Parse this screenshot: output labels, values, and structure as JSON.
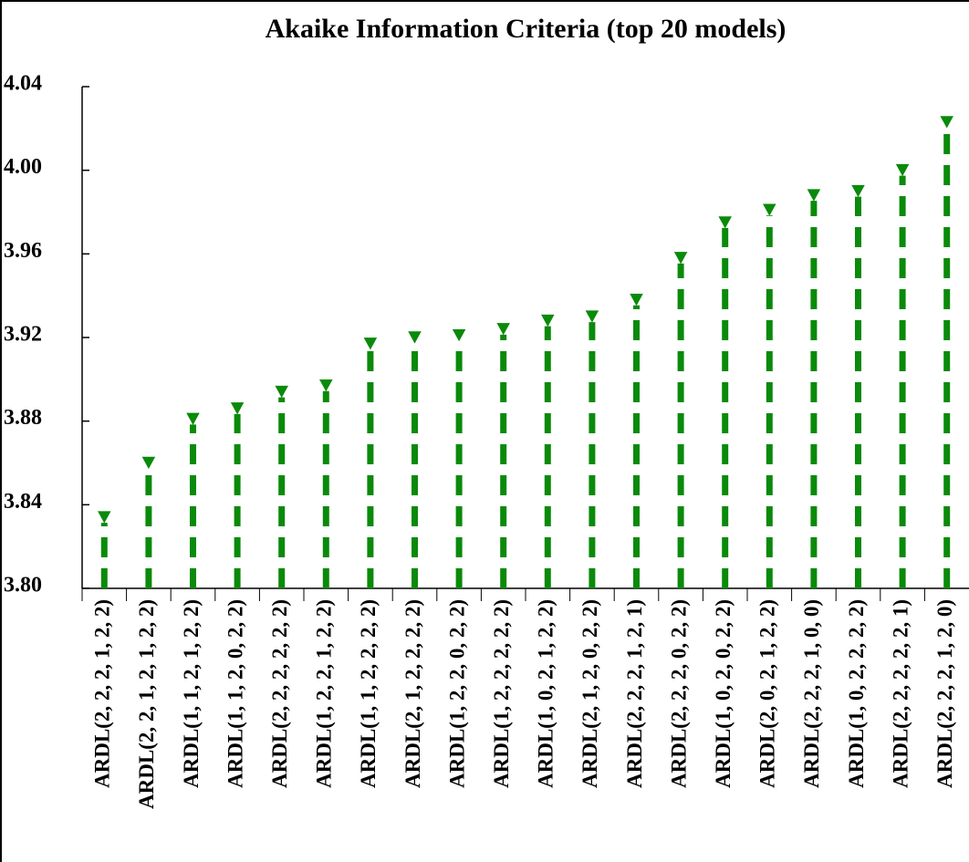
{
  "chart_data": {
    "type": "dropline",
    "title": "Akaike Information Criteria (top 20 models)",
    "categories": [
      "ARDL(2, 2, 2, 1, 2, 2)",
      "ARDL(2, 2, 1, 2, 1, 2, 2)",
      "ARDL(1, 1, 2, 1, 2, 2)",
      "ARDL(1, 1, 2, 0, 2, 2)",
      "ARDL(2, 2, 2, 2, 2, 2)",
      "ARDL(1, 2, 2, 1, 2, 2)",
      "ARDL(1, 1, 2, 2, 2, 2)",
      "ARDL(2, 1, 2, 2, 2, 2)",
      "ARDL(1, 2, 2, 0, 2, 2)",
      "ARDL(1, 2, 2, 2, 2, 2)",
      "ARDL(1, 0, 2, 1, 2, 2)",
      "ARDL(2, 1, 2, 0, 2, 2)",
      "ARDL(2, 2, 2, 1, 2, 1)",
      "ARDL(2, 2, 2, 0, 2, 2)",
      "ARDL(1, 0, 2, 0, 2, 2)",
      "ARDL(2, 0, 2, 1, 2, 2)",
      "ARDL(2, 2, 2, 1, 0, 0)",
      "ARDL(1, 0, 2, 2, 2, 2)",
      "ARDL(2, 2, 2, 2, 2, 1)",
      "ARDL(2, 2, 2, 1, 2, 0)"
    ],
    "values": [
      3.834,
      3.86,
      3.881,
      3.886,
      3.894,
      3.897,
      3.917,
      3.92,
      3.921,
      3.924,
      3.928,
      3.93,
      3.938,
      3.958,
      3.975,
      3.981,
      3.988,
      3.99,
      4.0,
      4.023
    ],
    "color": "#0a8a0a",
    "ylim": [
      3.8,
      4.04
    ],
    "yticks": [
      {
        "value": 3.8,
        "label": "3.80"
      },
      {
        "value": 3.84,
        "label": "3.84"
      },
      {
        "value": 3.88,
        "label": "3.88"
      },
      {
        "value": 3.92,
        "label": "3.92"
      },
      {
        "value": 3.96,
        "label": "3.96"
      },
      {
        "value": 4.0,
        "label": "4.00"
      },
      {
        "value": 4.04,
        "label": "4.04"
      }
    ]
  }
}
